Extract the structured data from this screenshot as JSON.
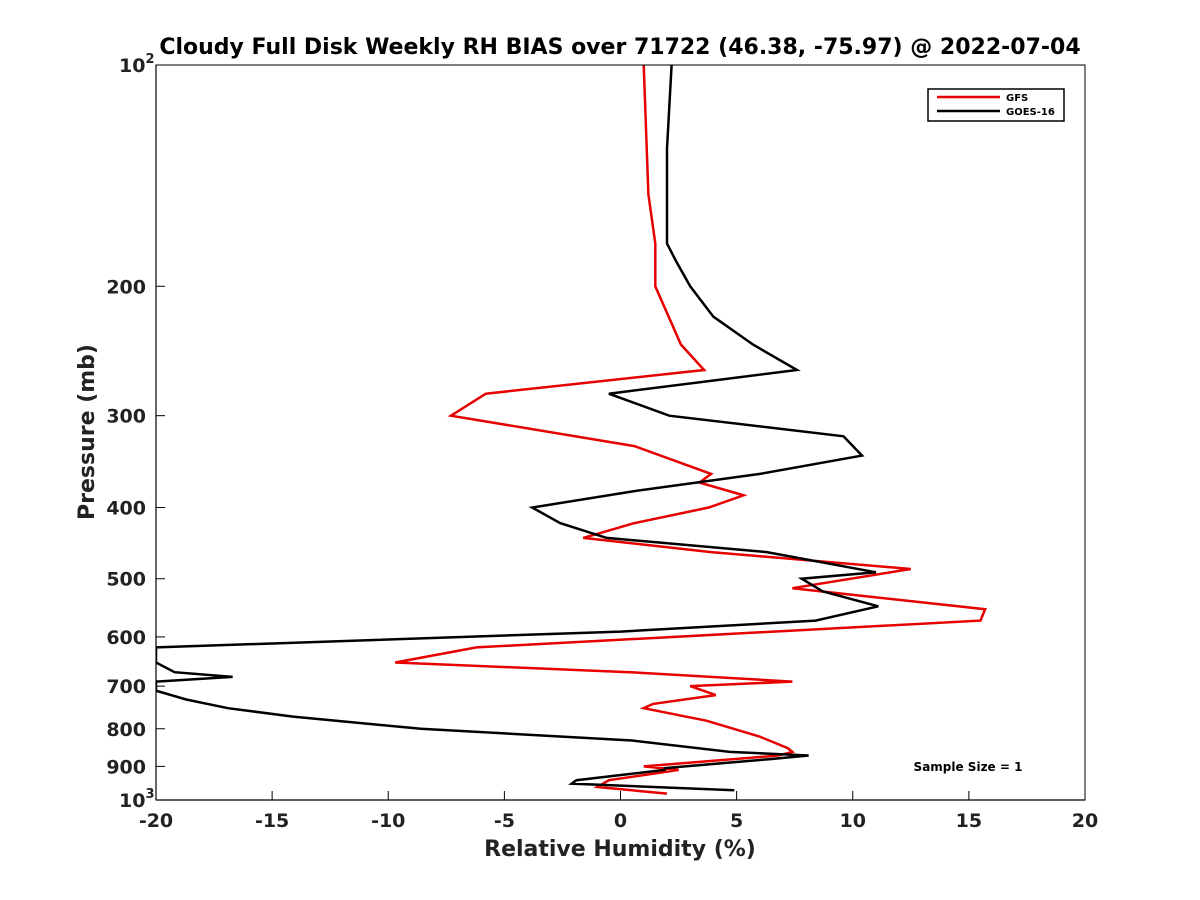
{
  "chart_data": {
    "type": "line",
    "title": "Cloudy Full Disk Weekly RH BIAS over 71722 (46.38, -75.97) @ 2022-07-04",
    "xlabel": "Relative Humidity (%)",
    "ylabel": "Pressure (mb)",
    "xlim": [
      -20,
      20
    ],
    "ylim": [
      100,
      1000
    ],
    "yscale": "log",
    "y_reversed": true,
    "x_ticks": [
      -20,
      -15,
      -10,
      -5,
      0,
      5,
      10,
      15,
      20
    ],
    "x_tick_labels": [
      "-20",
      "-15",
      "-10",
      "-5",
      "0",
      "5",
      "10",
      "15",
      "20"
    ],
    "y_ticks": [
      {
        "value": 100,
        "base": "10",
        "exp": "2"
      },
      {
        "value": 200,
        "label": "200"
      },
      {
        "value": 300,
        "label": "300"
      },
      {
        "value": 400,
        "label": "400"
      },
      {
        "value": 500,
        "label": "500"
      },
      {
        "value": 600,
        "label": "600"
      },
      {
        "value": 700,
        "label": "700"
      },
      {
        "value": 800,
        "label": "800"
      },
      {
        "value": 900,
        "label": "900"
      },
      {
        "value": 1000,
        "base": "10",
        "exp": "3"
      }
    ],
    "legend_position": "top-right",
    "annotation": "Sample Size = 1",
    "series": [
      {
        "name": "GFS",
        "color": "#e60000",
        "points": [
          [
            1.0,
            100
          ],
          [
            1.2,
            150
          ],
          [
            1.5,
            175
          ],
          [
            1.5,
            200
          ],
          [
            2.6,
            240
          ],
          [
            3.6,
            260
          ],
          [
            -5.8,
            280
          ],
          [
            -7.3,
            300
          ],
          [
            0.6,
            330
          ],
          [
            3.9,
            360
          ],
          [
            3.4,
            370
          ],
          [
            5.3,
            385
          ],
          [
            3.8,
            400
          ],
          [
            0.6,
            420
          ],
          [
            -1.6,
            440
          ],
          [
            3.9,
            460
          ],
          [
            12.5,
            485
          ],
          [
            7.4,
            515
          ],
          [
            15.7,
            550
          ],
          [
            15.5,
            570
          ],
          [
            -6.2,
            620
          ],
          [
            -9.7,
            650
          ],
          [
            0.4,
            670
          ],
          [
            7.4,
            690
          ],
          [
            3.0,
            700
          ],
          [
            4.1,
            720
          ],
          [
            1.4,
            740
          ],
          [
            1.0,
            750
          ],
          [
            3.7,
            780
          ],
          [
            6.0,
            820
          ],
          [
            7.2,
            850
          ],
          [
            7.4,
            860
          ],
          [
            6.8,
            870
          ],
          [
            1.0,
            900
          ],
          [
            2.5,
            910
          ],
          [
            1.5,
            920
          ],
          [
            -0.5,
            940
          ],
          [
            -1.0,
            960
          ],
          [
            2.0,
            980
          ]
        ]
      },
      {
        "name": "GOES-16",
        "color": "#000000",
        "points": [
          [
            2.2,
            100
          ],
          [
            2.0,
            130
          ],
          [
            2.0,
            175
          ],
          [
            2.4,
            185
          ],
          [
            3.0,
            200
          ],
          [
            4.0,
            220
          ],
          [
            5.7,
            240
          ],
          [
            7.6,
            260
          ],
          [
            -0.5,
            280
          ],
          [
            2.1,
            300
          ],
          [
            9.6,
            320
          ],
          [
            10.4,
            340
          ],
          [
            6.0,
            360
          ],
          [
            0.6,
            380
          ],
          [
            -3.8,
            400
          ],
          [
            -2.6,
            420
          ],
          [
            -0.6,
            440
          ],
          [
            6.3,
            460
          ],
          [
            11.0,
            490
          ],
          [
            7.8,
            500
          ],
          [
            8.7,
            520
          ],
          [
            11.1,
            545
          ],
          [
            8.4,
            570
          ],
          [
            0.0,
            590
          ],
          [
            -20.0,
            620
          ],
          [
            -20.0,
            650
          ],
          [
            -19.2,
            670
          ],
          [
            -16.7,
            680
          ],
          [
            -20.0,
            690
          ],
          [
            -20.0,
            700
          ],
          [
            -20.0,
            710
          ],
          [
            -18.7,
            730
          ],
          [
            -16.9,
            750
          ],
          [
            -14.1,
            770
          ],
          [
            -8.6,
            800
          ],
          [
            0.5,
            830
          ],
          [
            4.7,
            860
          ],
          [
            8.1,
            870
          ],
          [
            6.4,
            880
          ],
          [
            1.9,
            905
          ],
          [
            1.9,
            910
          ],
          [
            -1.9,
            940
          ],
          [
            -2.1,
            950
          ],
          [
            4.9,
            970
          ]
        ]
      }
    ]
  }
}
